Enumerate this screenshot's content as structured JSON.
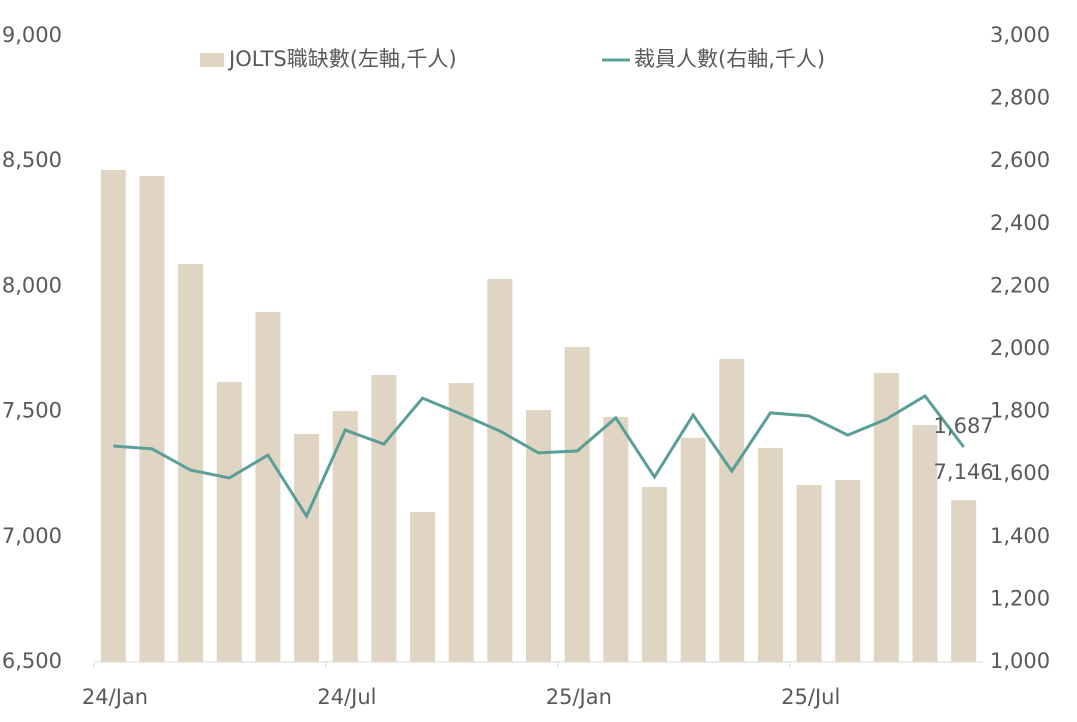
{
  "chart_data": {
    "type": "bar-line",
    "categories": [
      "24/Jan",
      null,
      null,
      null,
      null,
      null,
      "24/Jul",
      null,
      null,
      null,
      null,
      null,
      "25/Jan",
      null,
      null,
      null,
      null,
      null,
      "25/Jul",
      null,
      null,
      null,
      null
    ],
    "ylim": [
      6500,
      9000
    ],
    "yticks": [
      {
        "value": 6500,
        "label": "6,500"
      },
      {
        "value": 7000,
        "label": "7,000"
      },
      {
        "value": 7500,
        "label": "7,500"
      },
      {
        "value": 8000,
        "label": "8,000"
      },
      {
        "value": 8500,
        "label": "8,500"
      },
      {
        "value": 9000,
        "label": "9,000"
      }
    ],
    "y2lim": [
      1000,
      3000
    ],
    "y2ticks": [
      {
        "value": 1000,
        "label": "1,000"
      },
      {
        "value": 1200,
        "label": "1,200"
      },
      {
        "value": 1400,
        "label": "1,400"
      },
      {
        "value": 1600,
        "label": "1,600"
      },
      {
        "value": 1800,
        "label": "1,800"
      },
      {
        "value": 2000,
        "label": "2,000"
      },
      {
        "value": 2200,
        "label": "2,200"
      },
      {
        "value": 2400,
        "label": "2,400"
      },
      {
        "value": 2600,
        "label": "2,600"
      },
      {
        "value": 2800,
        "label": "2,800"
      },
      {
        "value": 3000,
        "label": "3,000"
      }
    ],
    "series": [
      {
        "name": "JOLTS職缺數(左軸,千人)",
        "type": "bar",
        "color": "#e0d4c3",
        "values": [
          8465,
          8441,
          8089,
          7618,
          7898,
          7411,
          7502,
          7646,
          7099,
          7614,
          8030,
          7506,
          7758,
          7478,
          7199,
          7395,
          7710,
          7355,
          7207,
          7227,
          7654,
          7446,
          7146
        ],
        "value_labels": [
          null,
          null,
          null,
          null,
          null,
          null,
          null,
          null,
          null,
          null,
          null,
          null,
          null,
          null,
          null,
          null,
          null,
          null,
          null,
          null,
          null,
          null,
          "7,146"
        ]
      },
      {
        "name": "裁員人數(右軸,千人)",
        "type": "line",
        "axis": "y2",
        "color": "#5a9e98",
        "values": [
          1690,
          1681,
          1613,
          1588,
          1661,
          1466,
          1741,
          1696,
          1843,
          1792,
          1738,
          1668,
          1674,
          1780,
          1591,
          1789,
          1610,
          1796,
          1786,
          1725,
          1776,
          1850,
          1687
        ],
        "value_labels": [
          null,
          null,
          null,
          null,
          null,
          null,
          null,
          null,
          null,
          null,
          null,
          null,
          null,
          null,
          null,
          null,
          null,
          null,
          null,
          null,
          null,
          null,
          "1,687"
        ]
      }
    ]
  }
}
